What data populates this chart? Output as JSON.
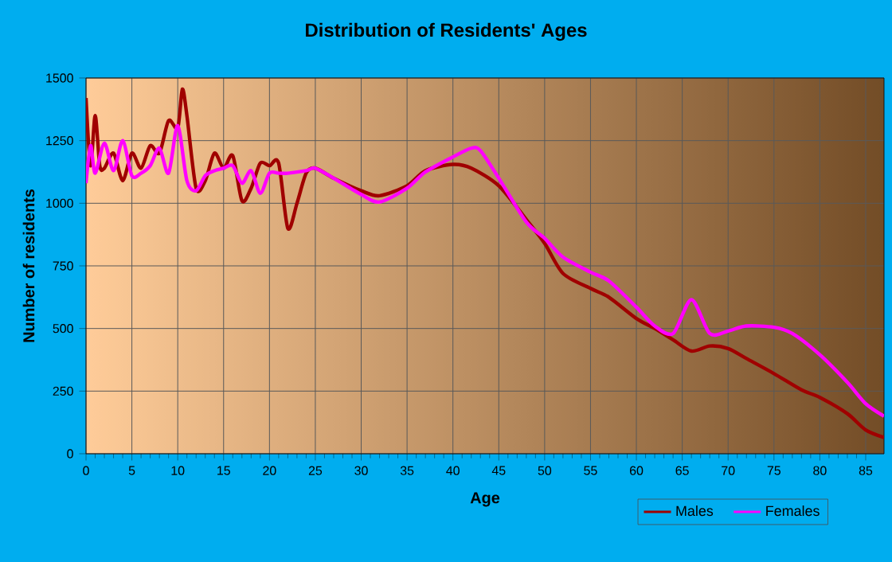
{
  "chart_data": {
    "type": "line",
    "title": "Distribution of Residents' Ages",
    "xlabel": "Age",
    "ylabel": "Number of residents",
    "xlim": [
      0,
      87
    ],
    "ylim": [
      0,
      1500
    ],
    "xticks": [
      0,
      5,
      10,
      15,
      20,
      25,
      30,
      35,
      40,
      45,
      50,
      55,
      60,
      65,
      70,
      75,
      80,
      85
    ],
    "yticks": [
      0,
      250,
      500,
      750,
      1000,
      1250,
      1500
    ],
    "grid": true,
    "legend": "bottom right",
    "marker": "none",
    "line_style": "solid",
    "series": [
      {
        "name": "Males",
        "color": "#a00000",
        "x": [
          0,
          0.5,
          1,
          1.5,
          2,
          3,
          4,
          5,
          6,
          7,
          8,
          9,
          10,
          10.5,
          11,
          12,
          13,
          14,
          15,
          16,
          17,
          18,
          19,
          20,
          21,
          22,
          23,
          24,
          25,
          27,
          30,
          32,
          35,
          37,
          40,
          42,
          45,
          48,
          50,
          52,
          55,
          57,
          60,
          62,
          64,
          66,
          68,
          70,
          72,
          75,
          78,
          80,
          83,
          85,
          87
        ],
        "values": [
          1420,
          1150,
          1350,
          1150,
          1140,
          1200,
          1090,
          1200,
          1140,
          1230,
          1200,
          1330,
          1300,
          1455,
          1350,
          1060,
          1090,
          1200,
          1140,
          1190,
          1010,
          1060,
          1160,
          1150,
          1160,
          900,
          1000,
          1120,
          1140,
          1100,
          1050,
          1030,
          1070,
          1130,
          1155,
          1140,
          1070,
          935,
          840,
          720,
          660,
          625,
          540,
          500,
          455,
          410,
          430,
          420,
          380,
          320,
          255,
          225,
          160,
          95,
          65
        ]
      },
      {
        "name": "Females",
        "color": "#ff00ff",
        "x": [
          0,
          0.5,
          1,
          2,
          3,
          4,
          5,
          6,
          7,
          8,
          9,
          10,
          11,
          12,
          13,
          14,
          15,
          16,
          17,
          18,
          19,
          20,
          21,
          22,
          24,
          25,
          27,
          30,
          32,
          35,
          37,
          40,
          42,
          43,
          45,
          48,
          50,
          52,
          55,
          57,
          60,
          62,
          64,
          66,
          68,
          70,
          72,
          75,
          77,
          80,
          83,
          85,
          87
        ],
        "values": [
          1080,
          1230,
          1120,
          1240,
          1130,
          1250,
          1110,
          1120,
          1150,
          1220,
          1120,
          1310,
          1090,
          1050,
          1110,
          1130,
          1140,
          1150,
          1080,
          1130,
          1040,
          1120,
          1120,
          1120,
          1130,
          1140,
          1100,
          1035,
          1005,
          1060,
          1125,
          1185,
          1220,
          1210,
          1100,
          925,
          860,
          785,
          725,
          690,
          585,
          510,
          480,
          615,
          480,
          490,
          510,
          505,
          480,
          395,
          285,
          200,
          150
        ]
      }
    ]
  }
}
